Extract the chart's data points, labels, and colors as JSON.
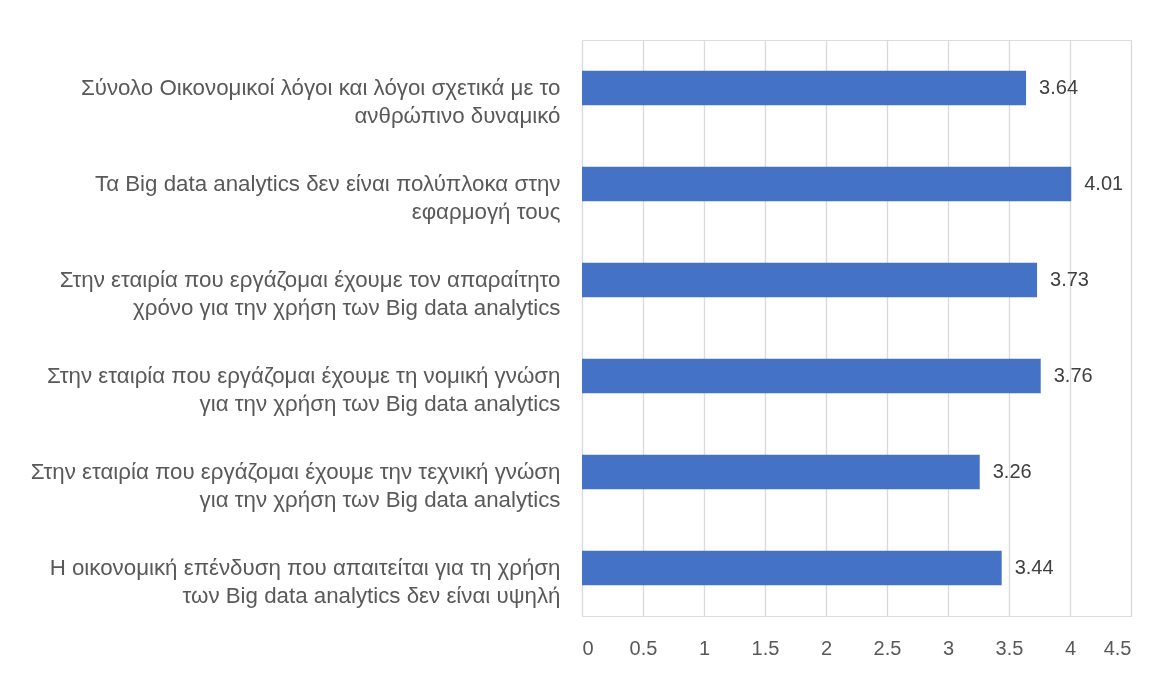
{
  "chart_data": {
    "type": "bar",
    "orientation": "horizontal",
    "categories": [
      "Σύνολο Οικονομικοί λόγοι και λόγοι σχετικά με το ανθρώπινο δυναμικό",
      "Τα Big data analytics δεν είναι πολύπλοκα στην εφαρμογή τους",
      "Στην εταιρία που εργάζομαι έχουμε τον απαραίτητο χρόνο για την χρήση των Big data analytics",
      "Στην εταιρία που εργάζομαι έχουμε τη νομική γνώση για την χρήση των Big data analytics",
      "Στην εταιρία που εργάζομαι έχουμε την τεχνική γνώση για την χρήση των Big data analytics",
      "Η οικονομική επένδυση που απαιτείται για τη χρήση των Big data analytics δεν είναι υψηλή"
    ],
    "values": [
      3.64,
      4.01,
      3.73,
      3.76,
      3.26,
      3.44
    ],
    "color": "#4472c4",
    "xlim": [
      0,
      4.5
    ],
    "xticks": [
      0,
      0.5,
      1,
      1.5,
      2,
      2.5,
      3,
      3.5,
      4,
      4.5
    ],
    "grid": "x",
    "data_labels": true
  }
}
